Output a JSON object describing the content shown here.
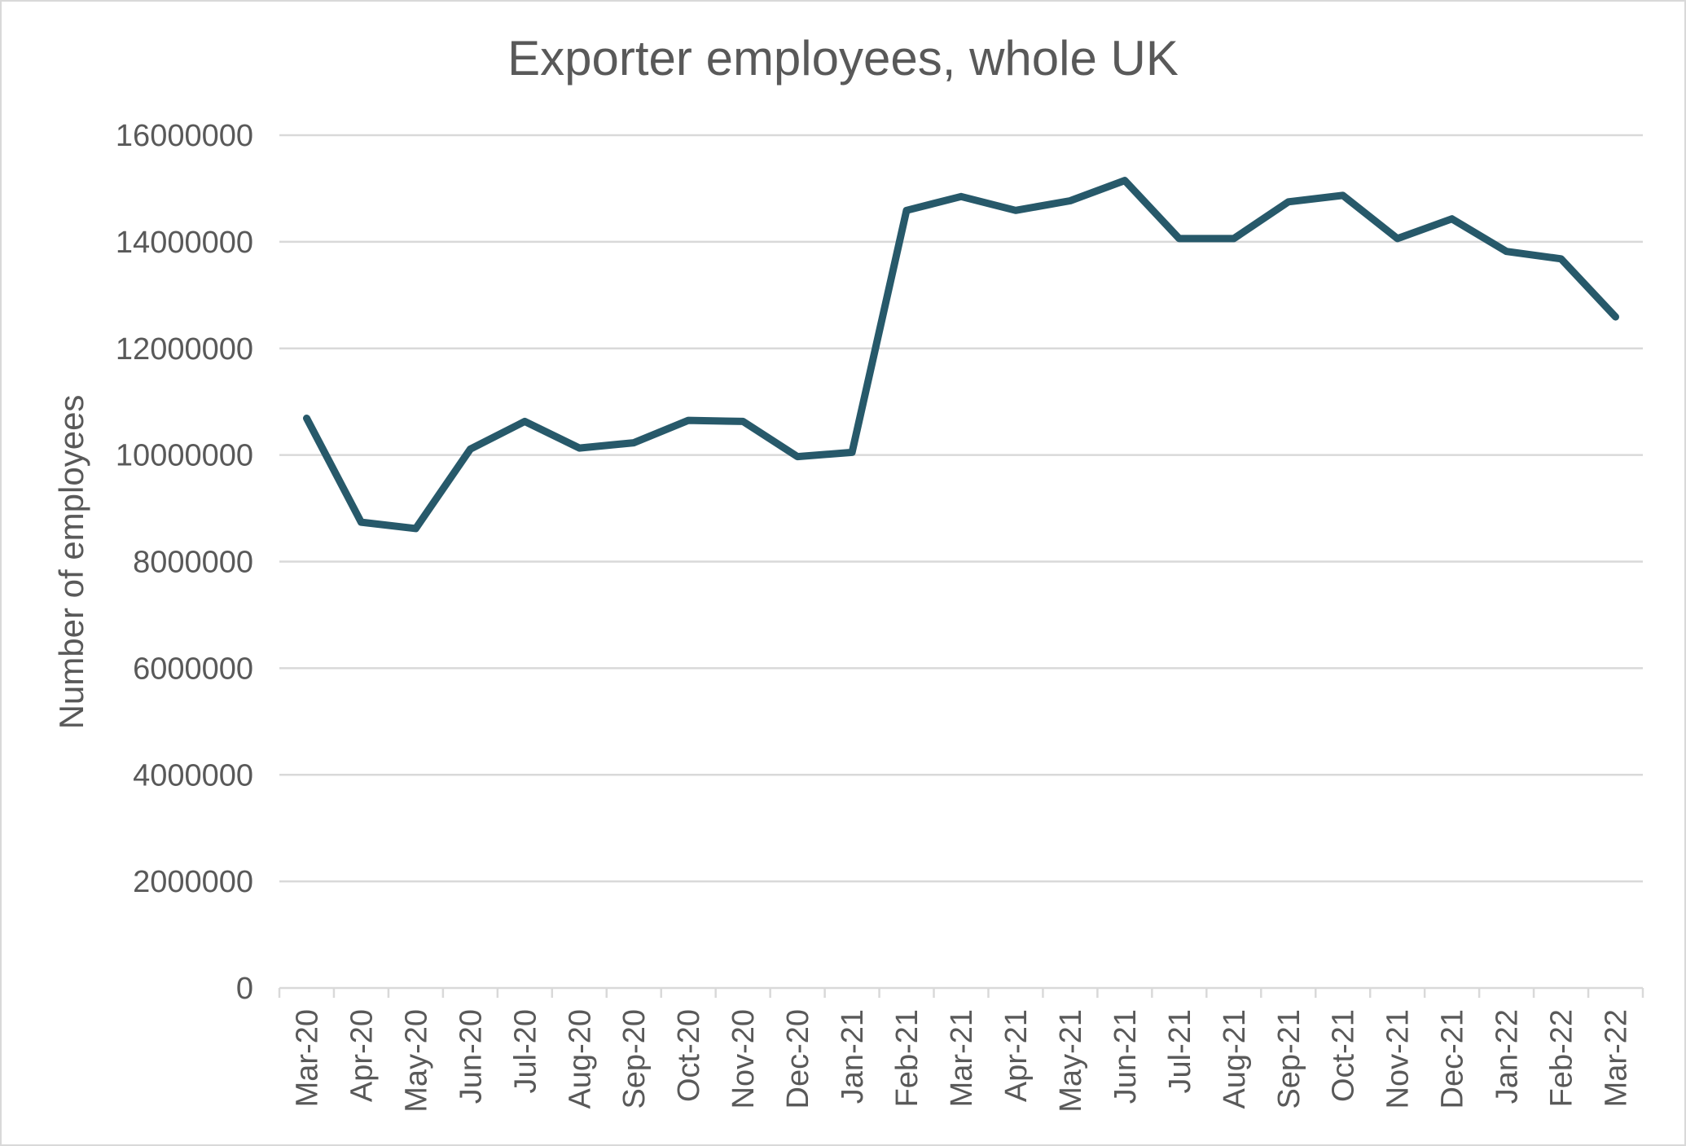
{
  "chart_data": {
    "type": "line",
    "title": "Exporter employees, whole UK",
    "xlabel": "",
    "ylabel": "Number of employees",
    "ylim": [
      0,
      16000000
    ],
    "yticks": [
      0,
      2000000,
      4000000,
      6000000,
      8000000,
      10000000,
      12000000,
      14000000,
      16000000
    ],
    "ytick_labels": [
      "0",
      "2000000",
      "4000000",
      "6000000",
      "8000000",
      "10000000",
      "12000000",
      "14000000",
      "16000000"
    ],
    "grid": true,
    "legend": null,
    "categories": [
      "Mar-20",
      "Apr-20",
      "May-20",
      "Jun-20",
      "Jul-20",
      "Aug-20",
      "Sep-20",
      "Oct-20",
      "Nov-20",
      "Dec-20",
      "Jan-21",
      "Feb-21",
      "Mar-21",
      "Apr-21",
      "May-21",
      "Jun-21",
      "Jul-21",
      "Aug-21",
      "Sep-21",
      "Oct-21",
      "Nov-21",
      "Dec-21",
      "Jan-22",
      "Feb-22",
      "Mar-22"
    ],
    "series": [
      {
        "name": "Exporter employees",
        "color": "#27596a",
        "values": [
          10690000,
          8740000,
          8620000,
          10110000,
          10630000,
          10130000,
          10230000,
          10650000,
          10630000,
          9970000,
          10050000,
          14590000,
          14850000,
          14590000,
          14770000,
          15150000,
          14060000,
          14060000,
          14750000,
          14870000,
          14060000,
          14430000,
          13820000,
          13680000,
          12590000
        ]
      }
    ]
  },
  "colors": {
    "line": "#27596a",
    "text": "#595959",
    "grid": "#d9d9d9",
    "border": "#d9d9d9"
  }
}
